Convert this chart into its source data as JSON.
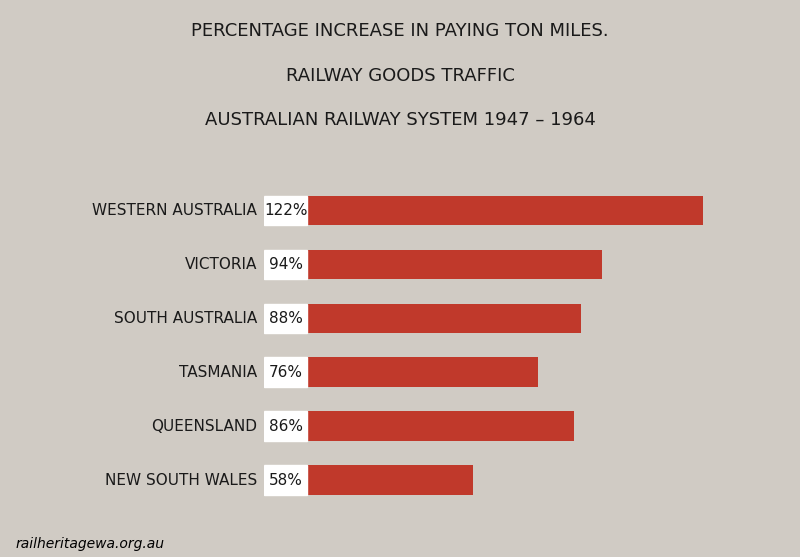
{
  "title_lines": [
    "PERCENTAGE INCREASE IN PAYING TON MILES.",
    "RAILWAY GOODS TRAFFIC",
    "AUSTRALIAN RAILWAY SYSTEM 1947 – 1964"
  ],
  "categories": [
    "WESTERN AUSTRALIA",
    "VICTORIA",
    "SOUTH AUSTRALIA",
    "TASMANIA",
    "QUEENSLAND",
    "NEW SOUTH WALES"
  ],
  "values": [
    122,
    94,
    88,
    76,
    86,
    58
  ],
  "bar_color": "#C0392B",
  "label_color": "#1a1a1a",
  "bg_color": "#D0CBC4",
  "text_color": "#1a1a1a",
  "title_fontsize": 13,
  "label_fontsize": 11,
  "bar_label_fontsize": 11,
  "watermark": "railheritagewa.org.au",
  "max_value": 140
}
